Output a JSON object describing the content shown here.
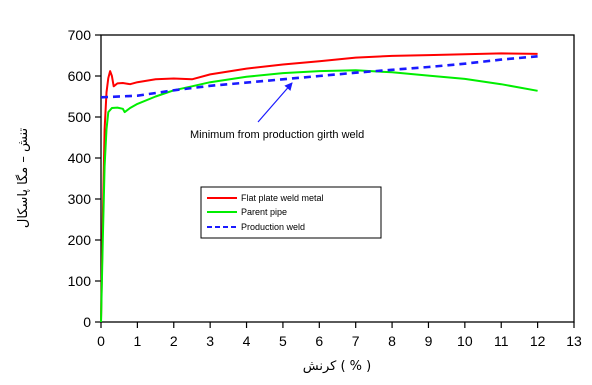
{
  "chart_data": {
    "type": "line",
    "title": "",
    "xlabel": "کرنش ( % )",
    "ylabel": "تنش – مگا پاسکال",
    "xlim": [
      0,
      13
    ],
    "ylim": [
      0,
      700
    ],
    "x_ticks": [
      0,
      1,
      2,
      3,
      4,
      5,
      6,
      7,
      8,
      9,
      10,
      11,
      12,
      13
    ],
    "y_ticks": [
      0,
      100,
      200,
      300,
      400,
      500,
      600,
      700
    ],
    "grid": false,
    "legend_position": "center-left",
    "annotation": {
      "text": "Minimum from production girth weld",
      "points_to": [
        4.9,
        590
      ]
    },
    "series": [
      {
        "name": "Flat plate weld metal",
        "color": "#ff0000",
        "style": "solid",
        "points": [
          [
            0,
            0
          ],
          [
            0.05,
            250
          ],
          [
            0.1,
            470
          ],
          [
            0.15,
            560
          ],
          [
            0.2,
            595
          ],
          [
            0.25,
            612
          ],
          [
            0.3,
            600
          ],
          [
            0.35,
            575
          ],
          [
            0.45,
            582
          ],
          [
            0.6,
            583
          ],
          [
            0.8,
            580
          ],
          [
            1,
            585
          ],
          [
            1.5,
            592
          ],
          [
            2,
            594
          ],
          [
            2.5,
            592
          ],
          [
            3,
            604
          ],
          [
            4,
            618
          ],
          [
            5,
            628
          ],
          [
            6,
            636
          ],
          [
            7,
            645
          ],
          [
            8,
            649
          ],
          [
            9,
            651
          ],
          [
            10,
            653
          ],
          [
            11,
            655
          ],
          [
            12,
            654
          ]
        ]
      },
      {
        "name": "Parent pipe",
        "color": "#00ee00",
        "style": "solid",
        "points": [
          [
            0,
            0
          ],
          [
            0.05,
            200
          ],
          [
            0.1,
            380
          ],
          [
            0.15,
            470
          ],
          [
            0.2,
            512
          ],
          [
            0.3,
            522
          ],
          [
            0.45,
            523
          ],
          [
            0.6,
            520
          ],
          [
            0.65,
            512
          ],
          [
            0.8,
            522
          ],
          [
            1,
            532
          ],
          [
            1.5,
            550
          ],
          [
            2,
            565
          ],
          [
            2.5,
            575
          ],
          [
            3,
            585
          ],
          [
            4,
            598
          ],
          [
            5,
            607
          ],
          [
            6,
            612
          ],
          [
            7,
            614
          ],
          [
            8,
            609
          ],
          [
            9,
            601
          ],
          [
            10,
            593
          ],
          [
            11,
            580
          ],
          [
            12,
            564
          ]
        ]
      },
      {
        "name": "Production weld",
        "color": "#1a1aff",
        "style": "dashed",
        "points": [
          [
            0,
            548
          ],
          [
            1,
            552
          ],
          [
            2,
            565
          ],
          [
            3,
            576
          ],
          [
            4,
            584
          ],
          [
            5,
            592
          ],
          [
            6,
            600
          ],
          [
            7,
            608
          ],
          [
            8,
            615
          ],
          [
            9,
            622
          ],
          [
            10,
            630
          ],
          [
            11,
            640
          ],
          [
            12,
            648
          ]
        ]
      }
    ]
  }
}
